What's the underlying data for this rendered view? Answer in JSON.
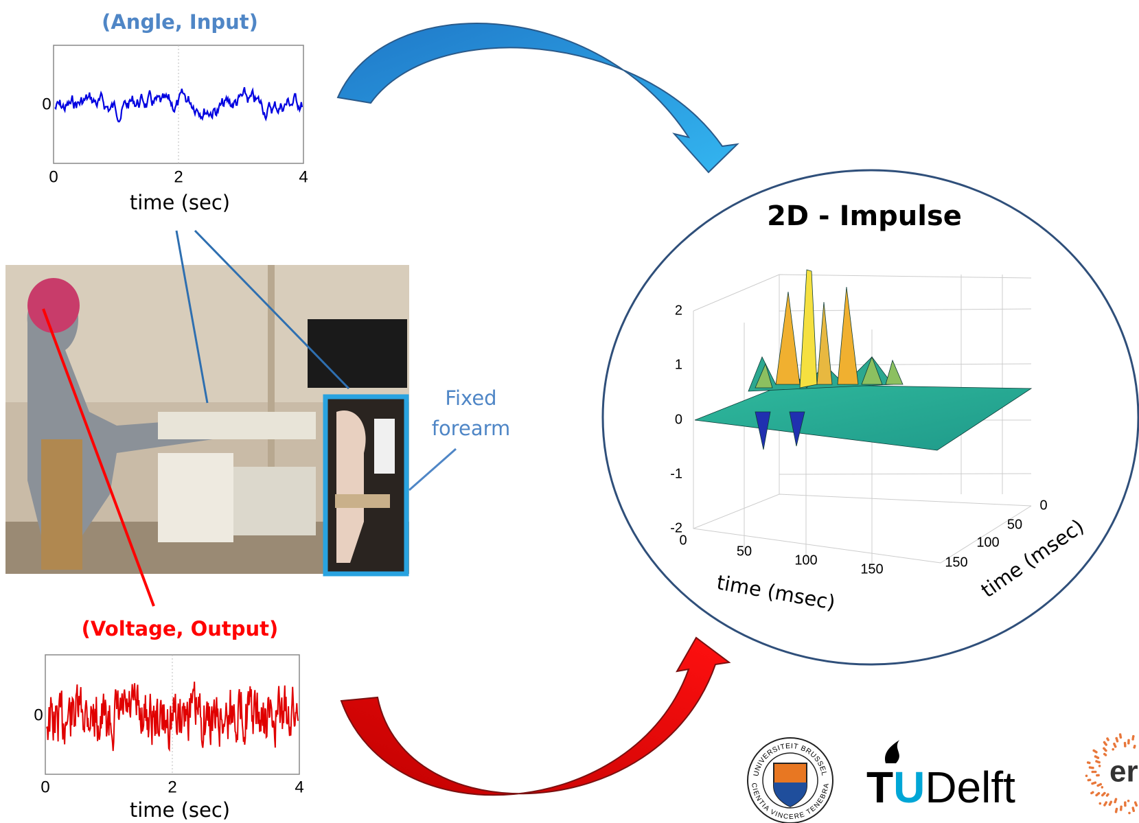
{
  "input_plot": {
    "title": "(Angle, Input)",
    "y_tick": "0",
    "x_ticks": [
      "0",
      "2",
      "4"
    ],
    "x_label": "time (sec)"
  },
  "output_plot": {
    "title": "(Voltage, Output)",
    "y_tick": "0",
    "x_ticks": [
      "0",
      "2",
      "4"
    ],
    "x_label": "time (sec)"
  },
  "photo_annotation": {
    "lines": [
      "Fixed",
      "forearm"
    ]
  },
  "impulse_plot": {
    "title": "2D - Impulse",
    "z_ticks": [
      "2",
      "1",
      "0",
      "-1",
      "-2"
    ],
    "x_ticks": [
      "0",
      "50",
      "100",
      "150"
    ],
    "y_ticks": [
      "0",
      "50",
      "100",
      "150"
    ],
    "x_label": "time (msec)",
    "y_label": "time (msec)"
  },
  "logos": {
    "vub_top": "UNIVERSITEIT BRUSSEL",
    "vub_bottom": "SCIENTIA VINCERE TENEBRAS",
    "tu_t": "T",
    "tu_u": "U",
    "delft": "Delft",
    "erc": "er"
  }
}
